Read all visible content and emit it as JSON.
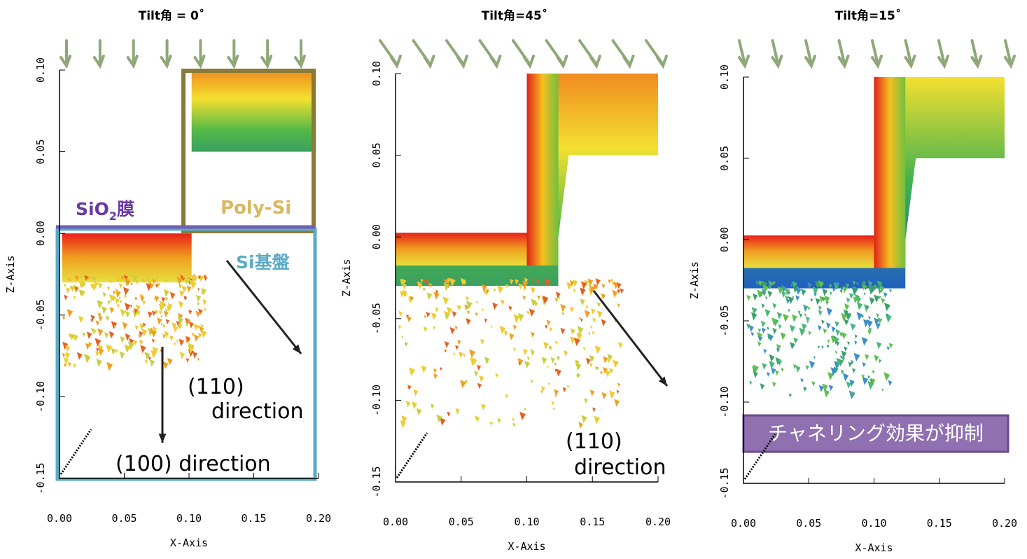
{
  "figure": {
    "panels": [
      {
        "title": "Tilt角 = 0˚",
        "x_label": "X-Axis",
        "z_label": "Z-Axis",
        "xlim": [
          0,
          0.2
        ],
        "zlim": [
          -0.15,
          0.1
        ],
        "xticks": [
          {
            "value": 0,
            "label": "0.00"
          },
          {
            "value": 0.05,
            "label": "0.05"
          },
          {
            "value": 0.1,
            "label": "0.10"
          },
          {
            "value": 0.15,
            "label": "0.15"
          },
          {
            "value": 0.2,
            "label": "0.20"
          }
        ],
        "zticks": [
          {
            "value": 0.1,
            "label": "0.10"
          },
          {
            "value": 0.05,
            "label": "0.05"
          },
          {
            "value": 0,
            "label": "0.00"
          },
          {
            "value": -0.05,
            "label": "-0.05"
          },
          {
            "value": -0.1,
            "label": "-0.10"
          },
          {
            "value": -0.15,
            "label": "-0.15"
          }
        ],
        "annotations": {
          "sio2": {
            "text": "SiO",
            "sub": "2",
            "suffix": "膜"
          },
          "poly_si": "Poly-Si",
          "si_substrate": "Si基盤",
          "dir110": [
            "(110)",
            "direction"
          ],
          "dir100": "(100) direction"
        }
      },
      {
        "title": "Tilt角=45˚",
        "x_label": "X-Axis",
        "z_label": "Z-Axis",
        "xlim": [
          0,
          0.2
        ],
        "zlim": [
          -0.15,
          0.1
        ],
        "xticks": [
          {
            "value": 0,
            "label": "0.00"
          },
          {
            "value": 0.05,
            "label": "0.05"
          },
          {
            "value": 0.1,
            "label": "0.10"
          },
          {
            "value": 0.15,
            "label": "0.15"
          },
          {
            "value": 0.2,
            "label": "0.20"
          }
        ],
        "zticks": [
          {
            "value": 0.1,
            "label": "0.10"
          },
          {
            "value": 0.05,
            "label": "0.05"
          },
          {
            "value": 0,
            "label": "0.00"
          },
          {
            "value": -0.05,
            "label": "-0.05"
          },
          {
            "value": -0.1,
            "label": "-0.10"
          },
          {
            "value": -0.15,
            "label": "-0.15"
          }
        ],
        "annotations": {
          "dir110": [
            "(110)",
            "direction"
          ]
        }
      },
      {
        "title": "Tilt角=15˚",
        "x_label": "X-Axis",
        "z_label": "Z-Axis",
        "xlim": [
          0,
          0.2
        ],
        "zlim": [
          -0.15,
          0.1
        ],
        "xticks": [
          {
            "value": 0,
            "label": "0.00"
          },
          {
            "value": 0.05,
            "label": "0.05"
          },
          {
            "value": 0.1,
            "label": "0.10"
          },
          {
            "value": 0.15,
            "label": "0.15"
          },
          {
            "value": 0.2,
            "label": "0.20"
          }
        ],
        "zticks": [
          {
            "value": 0.1,
            "label": "0.10"
          },
          {
            "value": 0.05,
            "label": "0.05"
          },
          {
            "value": 0,
            "label": "0.00"
          },
          {
            "value": -0.05,
            "label": "-0.05"
          },
          {
            "value": -0.1,
            "label": "-0.10"
          },
          {
            "value": -0.15,
            "label": "-0.15"
          }
        ],
        "annotations": {
          "note": "チャネリング効果が抑制"
        }
      }
    ]
  }
}
